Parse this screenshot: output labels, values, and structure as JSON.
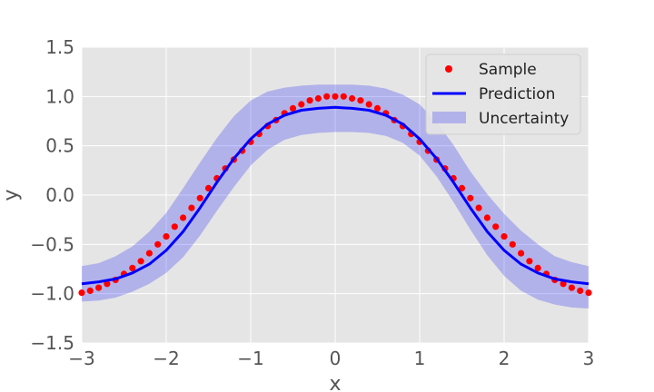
{
  "chart_data": {
    "type": "line",
    "title": "",
    "xlabel": "x",
    "ylabel": "y",
    "xlim": [
      -3,
      3
    ],
    "ylim": [
      -1.5,
      1.5
    ],
    "xticks": [
      -3,
      -2,
      -1,
      0,
      1,
      2,
      3
    ],
    "yticks": [
      -1.5,
      -1.0,
      -0.5,
      0.0,
      0.5,
      1.0,
      1.5
    ],
    "xtick_labels": [
      "−3",
      "−2",
      "−1",
      "0",
      "1",
      "2",
      "3"
    ],
    "ytick_labels": [
      "−1.5",
      "−1.0",
      "−0.5",
      "0.0",
      "0.5",
      "1.0",
      "1.5"
    ],
    "grid": true,
    "legend_position": "top-right",
    "legend": [
      "Sample",
      "Prediction",
      "Uncertainty"
    ],
    "series": [
      {
        "name": "Sample",
        "kind": "scatter",
        "color": "#ff0000",
        "x": [
          -3.0,
          -2.9,
          -2.8,
          -2.7,
          -2.6,
          -2.5,
          -2.4,
          -2.3,
          -2.2,
          -2.1,
          -2.0,
          -1.9,
          -1.8,
          -1.7,
          -1.6,
          -1.5,
          -1.4,
          -1.3,
          -1.2,
          -1.1,
          -1.0,
          -0.9,
          -0.8,
          -0.7,
          -0.6,
          -0.5,
          -0.4,
          -0.3,
          -0.2,
          -0.1,
          0.0,
          0.1,
          0.2,
          0.3,
          0.4,
          0.5,
          0.6,
          0.7,
          0.8,
          0.9,
          1.0,
          1.1,
          1.2,
          1.3,
          1.4,
          1.5,
          1.6,
          1.7,
          1.8,
          1.9,
          2.0,
          2.1,
          2.2,
          2.3,
          2.4,
          2.5,
          2.6,
          2.7,
          2.8,
          2.9,
          3.0
        ],
        "y": [
          -0.99,
          -0.97,
          -0.94,
          -0.9,
          -0.86,
          -0.8,
          -0.74,
          -0.67,
          -0.59,
          -0.5,
          -0.42,
          -0.32,
          -0.23,
          -0.13,
          -0.03,
          0.07,
          0.17,
          0.27,
          0.36,
          0.45,
          0.54,
          0.62,
          0.7,
          0.76,
          0.83,
          0.88,
          0.92,
          0.96,
          0.98,
          1.0,
          1.0,
          1.0,
          0.98,
          0.96,
          0.92,
          0.88,
          0.83,
          0.76,
          0.7,
          0.62,
          0.54,
          0.45,
          0.36,
          0.27,
          0.17,
          0.07,
          -0.03,
          -0.13,
          -0.23,
          -0.32,
          -0.42,
          -0.5,
          -0.59,
          -0.67,
          -0.74,
          -0.8,
          -0.86,
          -0.9,
          -0.94,
          -0.97,
          -0.99
        ]
      },
      {
        "name": "Prediction",
        "kind": "line",
        "color": "#0000ff",
        "x": [
          -3.0,
          -2.8,
          -2.6,
          -2.4,
          -2.2,
          -2.0,
          -1.8,
          -1.6,
          -1.4,
          -1.2,
          -1.0,
          -0.8,
          -0.6,
          -0.4,
          -0.2,
          0.0,
          0.2,
          0.4,
          0.6,
          0.8,
          1.0,
          1.2,
          1.4,
          1.6,
          1.8,
          2.0,
          2.2,
          2.4,
          2.6,
          2.8,
          3.0
        ],
        "y": [
          -0.9,
          -0.88,
          -0.85,
          -0.79,
          -0.7,
          -0.56,
          -0.37,
          -0.13,
          0.13,
          0.37,
          0.57,
          0.72,
          0.81,
          0.86,
          0.88,
          0.89,
          0.88,
          0.86,
          0.81,
          0.72,
          0.57,
          0.37,
          0.13,
          -0.13,
          -0.37,
          -0.56,
          -0.7,
          -0.79,
          -0.85,
          -0.88,
          -0.9
        ]
      },
      {
        "name": "Uncertainty",
        "kind": "band",
        "color": "#0000ff",
        "opacity": 0.22,
        "x": [
          -3.0,
          -2.8,
          -2.6,
          -2.4,
          -2.2,
          -2.0,
          -1.8,
          -1.6,
          -1.4,
          -1.2,
          -1.0,
          -0.8,
          -0.6,
          -0.4,
          -0.2,
          0.0,
          0.2,
          0.4,
          0.6,
          0.8,
          1.0,
          1.2,
          1.4,
          1.6,
          1.8,
          2.0,
          2.2,
          2.4,
          2.6,
          2.8,
          3.0
        ],
        "lower": [
          -1.08,
          -1.07,
          -1.04,
          -0.98,
          -0.9,
          -0.79,
          -0.63,
          -0.41,
          -0.16,
          0.08,
          0.3,
          0.46,
          0.56,
          0.61,
          0.63,
          0.64,
          0.64,
          0.63,
          0.6,
          0.53,
          0.4,
          0.19,
          -0.07,
          -0.35,
          -0.61,
          -0.82,
          -0.97,
          -1.06,
          -1.11,
          -1.14,
          -1.15
        ],
        "upper": [
          -0.72,
          -0.69,
          -0.62,
          -0.52,
          -0.37,
          -0.18,
          0.07,
          0.33,
          0.58,
          0.8,
          0.96,
          1.05,
          1.09,
          1.11,
          1.12,
          1.12,
          1.12,
          1.11,
          1.08,
          1.02,
          0.92,
          0.74,
          0.51,
          0.24,
          0.01,
          -0.19,
          -0.36,
          -0.5,
          -0.62,
          -0.68,
          -0.72
        ]
      }
    ]
  }
}
